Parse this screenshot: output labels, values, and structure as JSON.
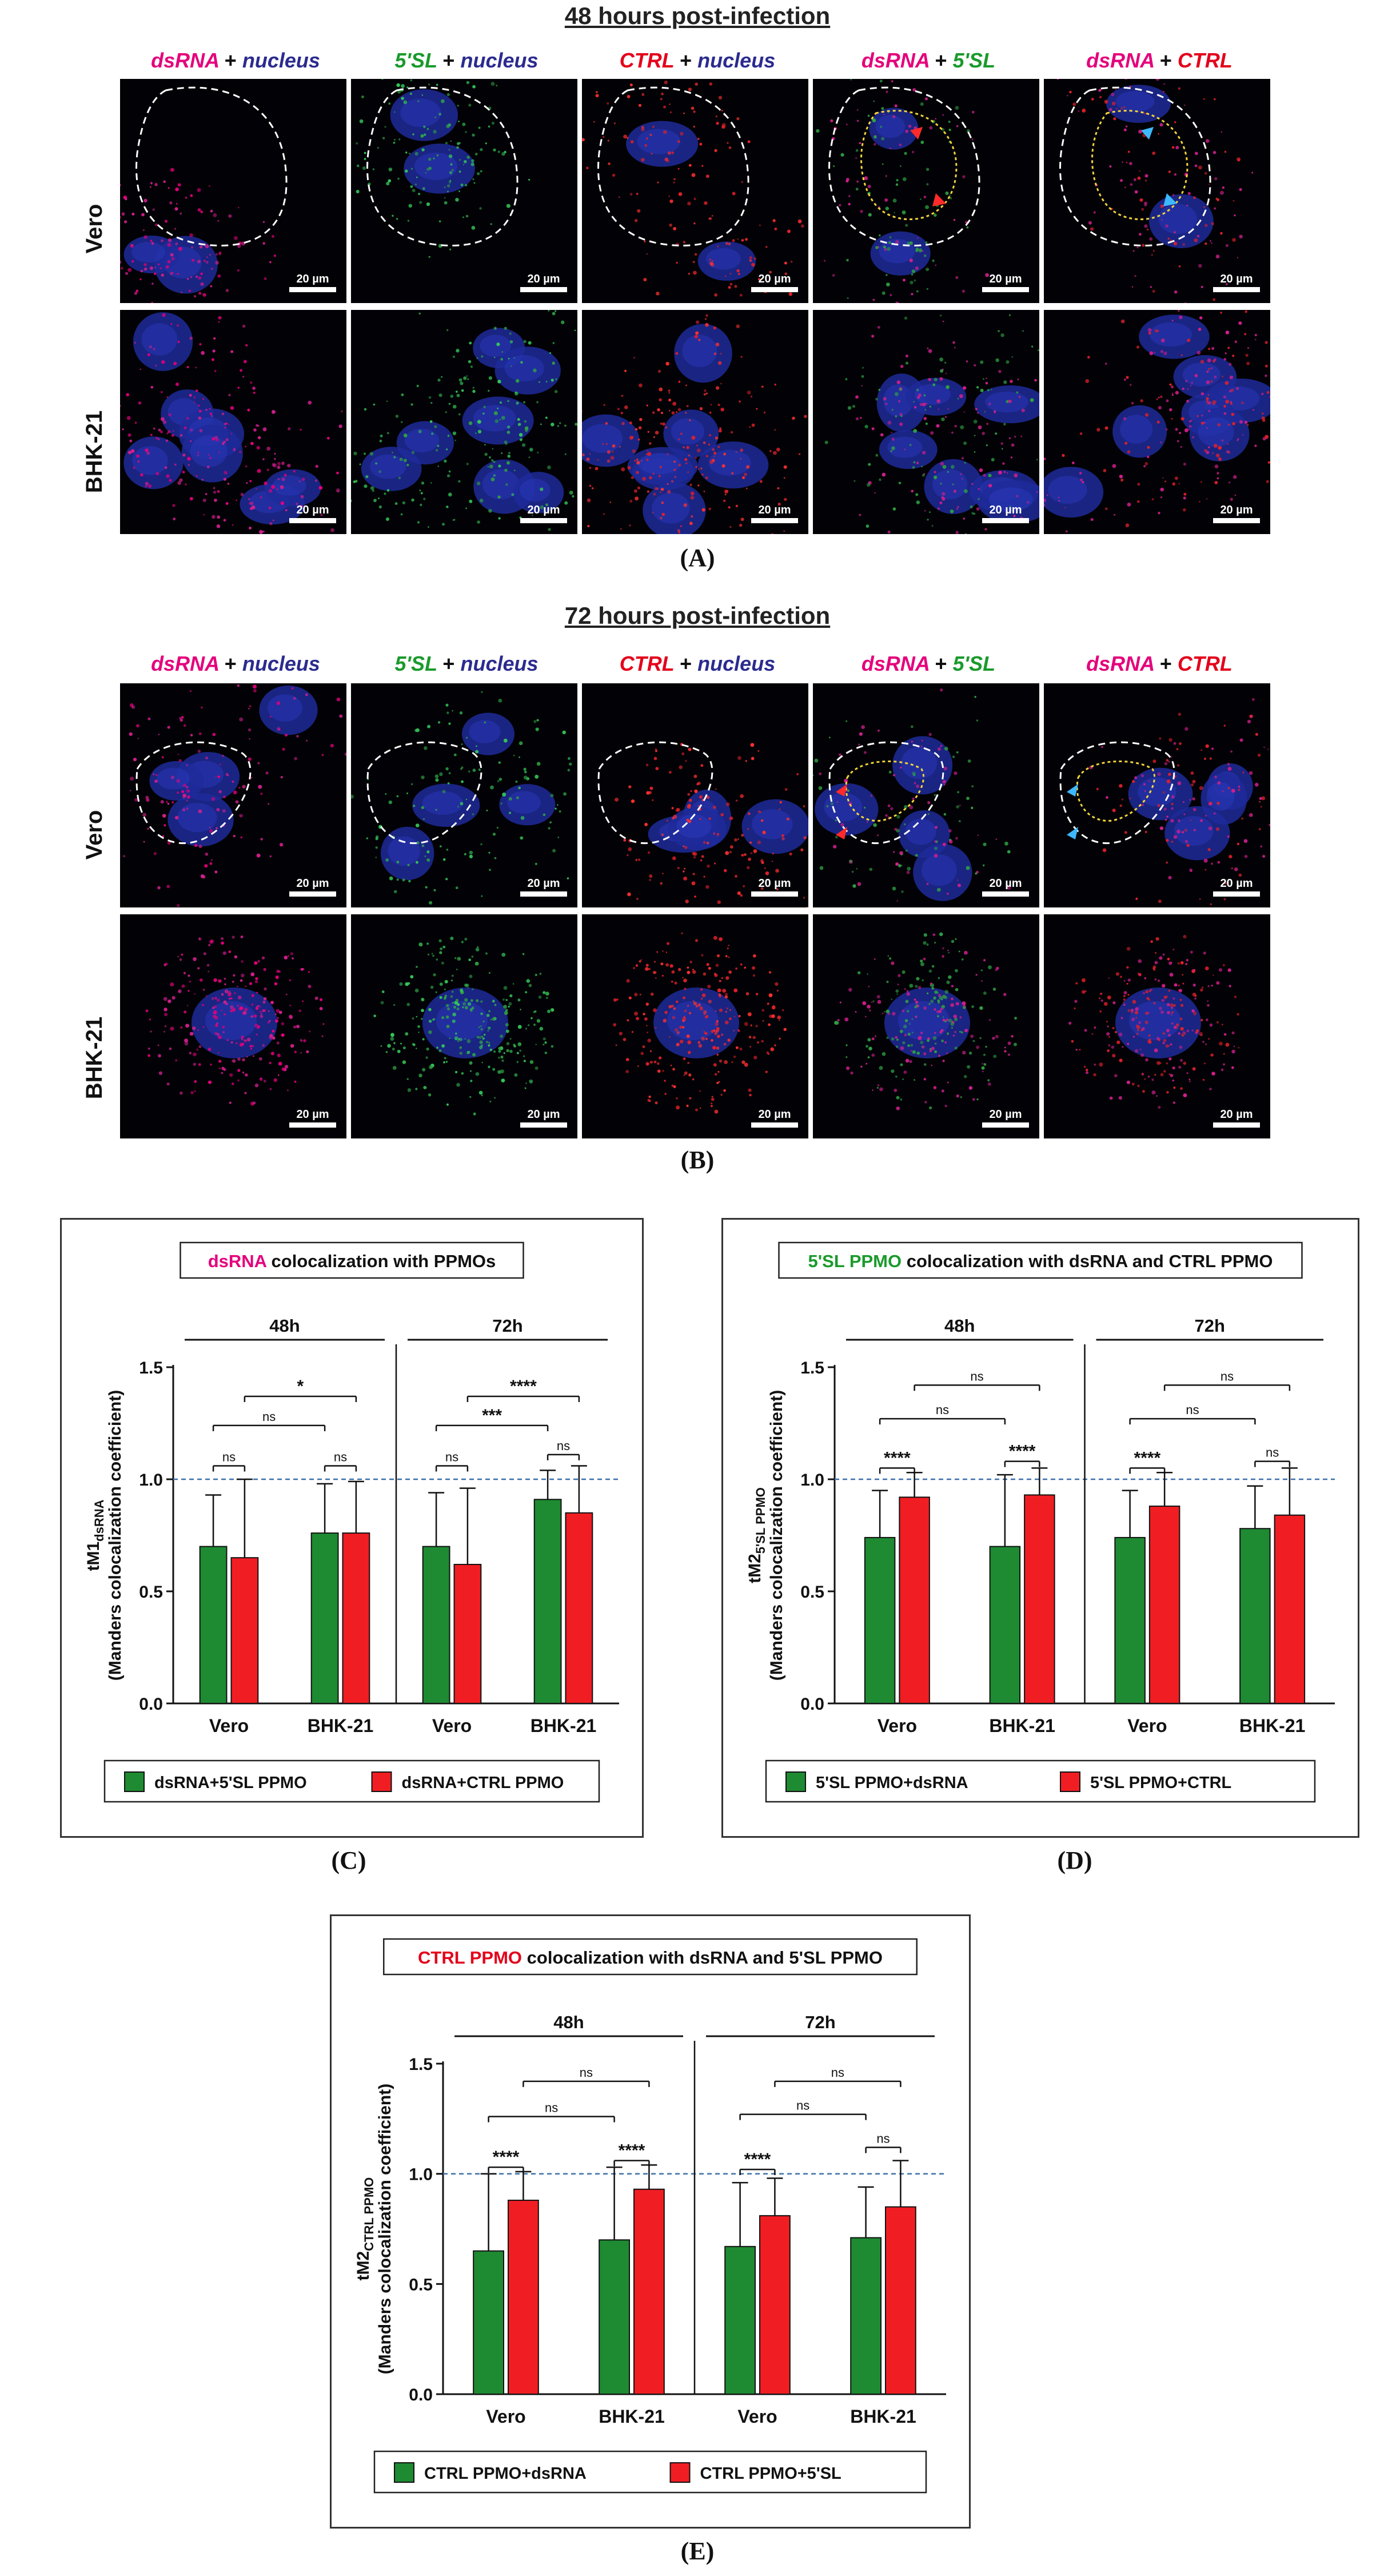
{
  "figure": {
    "panel_a": {
      "title": "48 hours post-infection",
      "letter": "(A)",
      "rows": [
        "Vero",
        "BHK-21"
      ]
    },
    "panel_b": {
      "title": "72 hours post-infection",
      "letter": "(B)",
      "rows": [
        "Vero",
        "BHK-21"
      ]
    },
    "columns": [
      {
        "a": "dsRNA",
        "plus": "+",
        "b": "nucleus",
        "ca": "#e4007c",
        "cb": "#2b2b8f"
      },
      {
        "a": "5'SL",
        "plus": "+",
        "b": "nucleus",
        "ca": "#1a9a2c",
        "cb": "#2b2b8f"
      },
      {
        "a": "CTRL",
        "plus": "+",
        "b": "nucleus",
        "ca": "#e3001b",
        "cb": "#2b2b8f"
      },
      {
        "a": "dsRNA",
        "plus": "+",
        "b": "5'SL",
        "ca": "#e4007c",
        "cb": "#1a9a2c"
      },
      {
        "a": "dsRNA",
        "plus": "+",
        "b": "CTRL",
        "ca": "#e4007c",
        "cb": "#e3001b"
      }
    ],
    "scalebar": "20 µm",
    "letters": {
      "c": "(C)",
      "d": "(D)",
      "e": "(E)"
    }
  },
  "chart_data": [
    {
      "id": "C",
      "type": "bar",
      "title_highlight": "dsRNA",
      "title_rest": " colocalization with  PPMOs",
      "highlight_color": "#e4007c",
      "ylabel_main": "tM1",
      "ylabel_sub": "dsRNA",
      "ylabel_2": "(Manders colocalization coefficient)",
      "groups": [
        "48h",
        "72h"
      ],
      "categories": [
        "Vero",
        "BHK-21",
        "Vero",
        "BHK-21"
      ],
      "ylim": [
        0,
        1.5
      ],
      "yticks": [
        "0.0",
        "0.5",
        "1.0",
        "1.5"
      ],
      "reference_line": 1.0,
      "series": [
        {
          "name": "dsRNA+5'SL PPMO",
          "color": "#1e8a32",
          "values": [
            0.7,
            0.76,
            0.7,
            0.91
          ],
          "err": [
            0.23,
            0.22,
            0.24,
            0.13
          ]
        },
        {
          "name": "dsRNA+CTRL PPMO",
          "color": "#f01e23",
          "values": [
            0.65,
            0.76,
            0.62,
            0.85
          ],
          "err": [
            0.35,
            0.23,
            0.34,
            0.21
          ]
        }
      ],
      "annotations": [
        {
          "group": 0,
          "text": "ns",
          "from": [
            0,
            0
          ],
          "to": [
            0,
            1
          ],
          "level": 1.06
        },
        {
          "group": 0,
          "text": "ns",
          "from": [
            1,
            0
          ],
          "to": [
            1,
            1
          ],
          "level": 1.06
        },
        {
          "group": 0,
          "text": "ns",
          "from": [
            0,
            0
          ],
          "to": [
            1,
            0
          ],
          "level": 1.24
        },
        {
          "group": 0,
          "text": "*",
          "from": [
            0,
            1
          ],
          "to": [
            1,
            1
          ],
          "level": 1.37
        },
        {
          "group": 1,
          "text": "ns",
          "from": [
            2,
            0
          ],
          "to": [
            2,
            1
          ],
          "level": 1.06
        },
        {
          "group": 1,
          "text": "ns",
          "from": [
            3,
            0
          ],
          "to": [
            3,
            1
          ],
          "level": 1.11
        },
        {
          "group": 1,
          "text": "***",
          "from": [
            2,
            0
          ],
          "to": [
            3,
            0
          ],
          "level": 1.24
        },
        {
          "group": 1,
          "text": "****",
          "from": [
            2,
            1
          ],
          "to": [
            3,
            1
          ],
          "level": 1.37
        }
      ]
    },
    {
      "id": "D",
      "type": "bar",
      "title_highlight": "5'SL PPMO",
      "title_rest": " colocalization with dsRNA and  CTRL PPMO",
      "highlight_color": "#1a9a2c",
      "ylabel_main": "tM2",
      "ylabel_sub": "5'SL PPMO",
      "ylabel_2": "(Manders colocalization coefficient)",
      "groups": [
        "48h",
        "72h"
      ],
      "categories": [
        "Vero",
        "BHK-21",
        "Vero",
        "BHK-21"
      ],
      "ylim": [
        0,
        1.5
      ],
      "yticks": [
        "0.0",
        "0.5",
        "1.0",
        "1.5"
      ],
      "reference_line": 1.0,
      "series": [
        {
          "name": "5'SL PPMO+dsRNA",
          "color": "#1e8a32",
          "values": [
            0.74,
            0.7,
            0.74,
            0.78
          ],
          "err": [
            0.21,
            0.32,
            0.21,
            0.19
          ]
        },
        {
          "name": "5'SL PPMO+CTRL",
          "color": "#f01e23",
          "values": [
            0.92,
            0.93,
            0.88,
            0.84
          ],
          "err": [
            0.11,
            0.12,
            0.15,
            0.21
          ]
        }
      ],
      "annotations": [
        {
          "group": 0,
          "text": "****",
          "from": [
            0,
            0
          ],
          "to": [
            0,
            1
          ],
          "level": 1.05
        },
        {
          "group": 0,
          "text": "****",
          "from": [
            1,
            0
          ],
          "to": [
            1,
            1
          ],
          "level": 1.08
        },
        {
          "group": 0,
          "text": "ns",
          "from": [
            0,
            0
          ],
          "to": [
            1,
            0
          ],
          "level": 1.27
        },
        {
          "group": 0,
          "text": "ns",
          "from": [
            0,
            1
          ],
          "to": [
            1,
            1
          ],
          "level": 1.42
        },
        {
          "group": 1,
          "text": "****",
          "from": [
            2,
            0
          ],
          "to": [
            2,
            1
          ],
          "level": 1.05
        },
        {
          "group": 1,
          "text": "ns",
          "from": [
            3,
            0
          ],
          "to": [
            3,
            1
          ],
          "level": 1.08
        },
        {
          "group": 1,
          "text": "ns",
          "from": [
            2,
            0
          ],
          "to": [
            3,
            0
          ],
          "level": 1.27
        },
        {
          "group": 1,
          "text": "ns",
          "from": [
            2,
            1
          ],
          "to": [
            3,
            1
          ],
          "level": 1.42
        }
      ]
    },
    {
      "id": "E",
      "type": "bar",
      "title_highlight": "CTRL PPMO",
      "title_rest": " colocalization with dsRNA and  5'SL  PPMO",
      "highlight_color": "#e3001b",
      "ylabel_main": "tM2",
      "ylabel_sub": "CTRL PPMO",
      "ylabel_2": "(Manders colocalization coefficient)",
      "groups": [
        "48h",
        "72h"
      ],
      "categories": [
        "Vero",
        "BHK-21",
        "Vero",
        "BHK-21"
      ],
      "ylim": [
        0,
        1.5
      ],
      "yticks": [
        "0.0",
        "0.5",
        "1.0",
        "1.5"
      ],
      "reference_line": 1.0,
      "series": [
        {
          "name": "CTRL PPMO+dsRNA",
          "color": "#1e8a32",
          "values": [
            0.65,
            0.7,
            0.67,
            0.71
          ],
          "err": [
            0.35,
            0.33,
            0.29,
            0.23
          ]
        },
        {
          "name": "CTRL PPMO+5'SL",
          "color": "#f01e23",
          "values": [
            0.88,
            0.93,
            0.81,
            0.85
          ],
          "err": [
            0.13,
            0.11,
            0.17,
            0.21
          ]
        }
      ],
      "annotations": [
        {
          "group": 0,
          "text": "****",
          "from": [
            0,
            0
          ],
          "to": [
            0,
            1
          ],
          "level": 1.03
        },
        {
          "group": 0,
          "text": "****",
          "from": [
            1,
            0
          ],
          "to": [
            1,
            1
          ],
          "level": 1.06
        },
        {
          "group": 0,
          "text": "ns",
          "from": [
            0,
            0
          ],
          "to": [
            1,
            0
          ],
          "level": 1.26
        },
        {
          "group": 0,
          "text": "ns",
          "from": [
            0,
            1
          ],
          "to": [
            1,
            1
          ],
          "level": 1.42
        },
        {
          "group": 1,
          "text": "****",
          "from": [
            2,
            0
          ],
          "to": [
            2,
            1
          ],
          "level": 1.02
        },
        {
          "group": 1,
          "text": "ns",
          "from": [
            3,
            0
          ],
          "to": [
            3,
            1
          ],
          "level": 1.12
        },
        {
          "group": 1,
          "text": "ns",
          "from": [
            2,
            0
          ],
          "to": [
            3,
            0
          ],
          "level": 1.27
        },
        {
          "group": 1,
          "text": "ns",
          "from": [
            2,
            1
          ],
          "to": [
            3,
            1
          ],
          "level": 1.42
        }
      ]
    }
  ]
}
